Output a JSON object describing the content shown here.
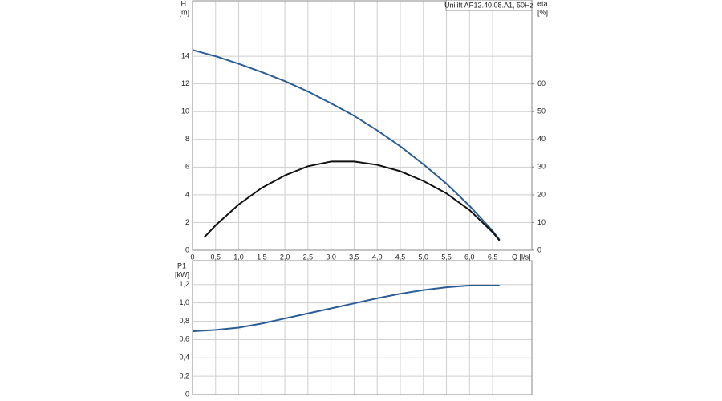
{
  "chart_data": [
    {
      "type": "line",
      "title": "Unilift AP12.40.08.A1, 50Hz",
      "x_label": "Q [l/s]",
      "y_label": "H",
      "y_unit": "[m]",
      "y2_label": "eta",
      "y2_unit": "[%]",
      "xlim": [
        0,
        7.35
      ],
      "xticks": [
        0,
        {
          "value": 0.5,
          "label": "0,5"
        },
        {
          "value": 1,
          "label": "1,0"
        },
        {
          "value": 1.5,
          "label": "1,5"
        },
        {
          "value": 2,
          "label": "2,0"
        },
        {
          "value": 2.5,
          "label": "2,5"
        },
        {
          "value": 3,
          "label": "3,0"
        },
        {
          "value": 3.5,
          "label": "3,5"
        },
        {
          "value": 4,
          "label": "4,0"
        },
        {
          "value": 4.5,
          "label": "4,5"
        },
        {
          "value": 5,
          "label": "5,0"
        },
        {
          "value": 5.5,
          "label": "5,5"
        },
        {
          "value": 6,
          "label": "6,0"
        },
        {
          "value": 6.5,
          "label": "6,5"
        }
      ],
      "ylim": [
        0,
        18
      ],
      "yticks": [
        0,
        2,
        4,
        6,
        8,
        10,
        12,
        14
      ],
      "y2lim": [
        0,
        90
      ],
      "y2ticks": [
        0,
        10,
        20,
        30,
        40,
        50,
        60
      ],
      "grid": true,
      "series": [
        {
          "color": "#2a5d96",
          "x": [
            0,
            0.5,
            1,
            1.5,
            2,
            2.5,
            3,
            3.5,
            4,
            4.5,
            5,
            5.5,
            6,
            6.5,
            6.65
          ],
          "values": [
            14.45,
            14.0,
            13.45,
            12.85,
            12.2,
            11.45,
            10.6,
            9.7,
            8.65,
            7.5,
            6.2,
            4.8,
            3.2,
            1.4,
            0.75
          ]
        },
        {
          "color": "#111111",
          "axis": "y2",
          "x": [
            0.25,
            0.5,
            1,
            1.5,
            2,
            2.5,
            3,
            3.5,
            4,
            4.5,
            5,
            5.5,
            6,
            6.5,
            6.65
          ],
          "values": [
            4.6,
            9,
            16.5,
            22.5,
            27,
            30.3,
            32,
            32,
            30.8,
            28.5,
            25,
            20.5,
            14.5,
            6.5,
            3.5
          ]
        }
      ]
    },
    {
      "type": "line",
      "y_label": "P1",
      "y_unit": "[kW]",
      "xlim": [
        0,
        7.35
      ],
      "xticks": [
        0,
        0.5,
        1,
        1.5,
        2,
        2.5,
        3,
        3.5,
        4,
        4.5,
        5,
        5.5,
        6,
        6.5
      ],
      "ylim": [
        0,
        1.46
      ],
      "yticks": [
        0,
        {
          "value": 0.2,
          "label": "0,2"
        },
        {
          "value": 0.4,
          "label": "0,4"
        },
        {
          "value": 0.6,
          "label": "0,6"
        },
        {
          "value": 0.8,
          "label": "0,8"
        },
        {
          "value": 1.0,
          "label": "1,0"
        },
        {
          "value": 1.2,
          "label": "1,2"
        }
      ],
      "grid": true,
      "series": [
        {
          "color": "#2a5d96",
          "x": [
            0,
            0.5,
            1,
            1.5,
            2,
            2.5,
            3,
            3.5,
            4,
            4.5,
            5,
            5.5,
            6,
            6.5,
            6.65
          ],
          "values": [
            0.69,
            0.705,
            0.73,
            0.775,
            0.83,
            0.885,
            0.94,
            0.995,
            1.05,
            1.1,
            1.14,
            1.17,
            1.19,
            1.19,
            1.19
          ]
        }
      ]
    }
  ]
}
